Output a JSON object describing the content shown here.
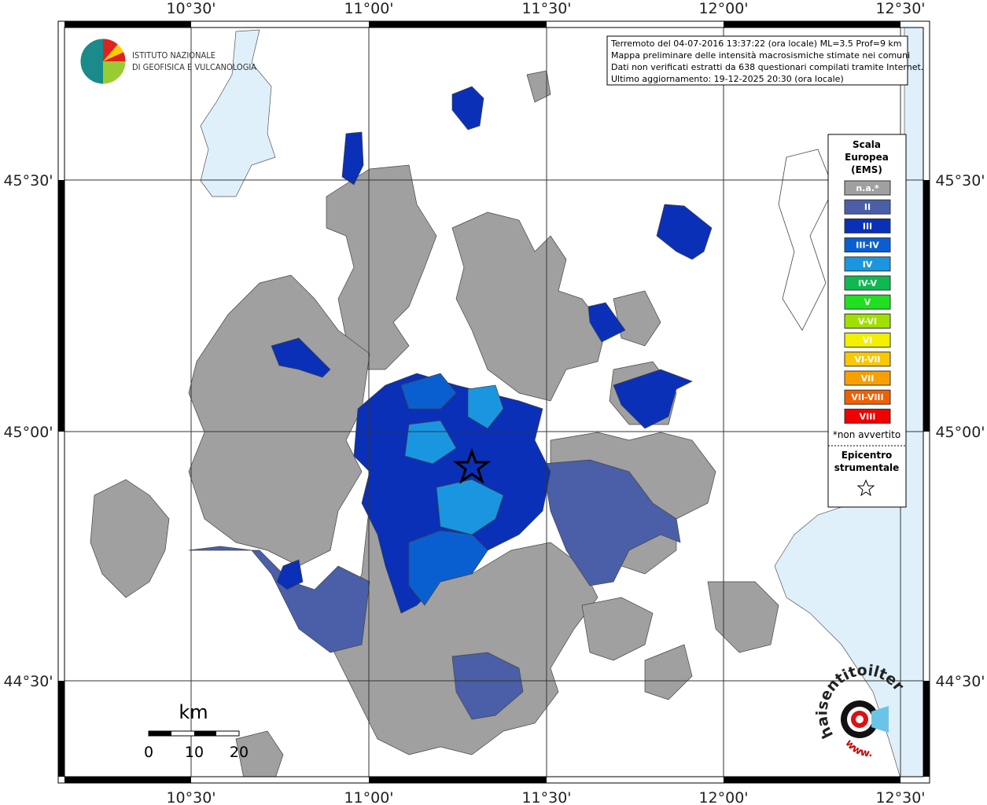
{
  "header": {
    "institute": [
      "ISTITUTO NAZIONALE",
      "DI GEOFISICA E VULCANOLOGIA"
    ]
  },
  "info": {
    "lines": [
      "Terremoto del 04-07-2016 13:37:22 (ora locale) ML=3.5 Prof=9 km",
      "Mappa preliminare delle intensità macrosismiche stimate nei comuni",
      "Dati non verificati estratti da 638 questionari compilati tramite Internet.",
      "Ultimo aggiornamento: 19-12-2025 20:30 (ora locale)"
    ]
  },
  "axes": {
    "longitudes": [
      "10°30'",
      "11°00'",
      "11°30'",
      "12°00'",
      "12°30'"
    ],
    "latitudes": [
      "45°30'",
      "45°00'",
      "44°30'"
    ]
  },
  "legend": {
    "title": [
      "Scala",
      "Europea",
      "(EMS)"
    ],
    "classes": [
      {
        "label": "n.a.*",
        "color": "#a0a0a0"
      },
      {
        "label": "II",
        "color": "#4a5fa8"
      },
      {
        "label": "III",
        "color": "#0a30b8"
      },
      {
        "label": "III-IV",
        "color": "#0a5fd0"
      },
      {
        "label": "IV",
        "color": "#1a96e0"
      },
      {
        "label": "IV-V",
        "color": "#10b850"
      },
      {
        "label": "V",
        "color": "#20e020"
      },
      {
        "label": "V-VI",
        "color": "#a0e000"
      },
      {
        "label": "VI",
        "color": "#f0f000"
      },
      {
        "label": "VI-VII",
        "color": "#f8c800"
      },
      {
        "label": "VII",
        "color": "#f8a000"
      },
      {
        "label": "VII-VIII",
        "color": "#f06000"
      },
      {
        "label": "VIII",
        "color": "#f00000"
      }
    ],
    "note": "*non avvertito",
    "epicenter": [
      "Epicentro",
      "strumentale"
    ]
  },
  "scale_bar": {
    "unit": "km",
    "labels": [
      "0",
      "10",
      "20"
    ]
  },
  "badge": {
    "text": "haisentitoilterremoto.it",
    "www": "www."
  }
}
